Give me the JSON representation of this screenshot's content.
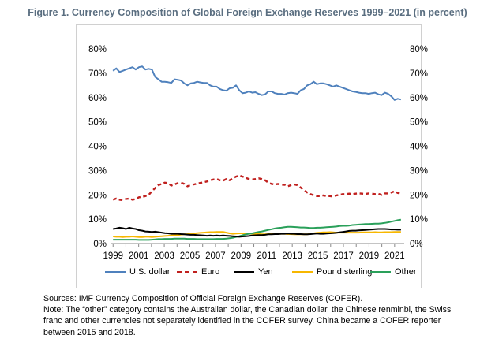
{
  "figure": {
    "title": "Figure 1. Currency Composition of Global Foreign Exchange Reserves 1999–2021 (in percent)"
  },
  "chart_data": {
    "type": "line",
    "title": "",
    "xlabel": "",
    "ylabel": "",
    "x_range": [
      1999,
      2021.5
    ],
    "xlim": [
      1998.8,
      2021.75
    ],
    "ylim": [
      0,
      80
    ],
    "y_ticks": [
      "0%",
      "10%",
      "20%",
      "30%",
      "40%",
      "50%",
      "60%",
      "70%",
      "80%"
    ],
    "y_ticks_right": [
      "0%",
      "10%",
      "20%",
      "30%",
      "40%",
      "50%",
      "60%",
      "70%",
      "80%"
    ],
    "x_ticks": [
      "1999",
      "2001",
      "2003",
      "2005",
      "2007",
      "2009",
      "2011",
      "2013",
      "2015",
      "2017",
      "2019",
      "2021"
    ],
    "grid": false,
    "legend_position": "bottom",
    "series": [
      {
        "name": "U.S. dollar",
        "color": "#4f81bd",
        "style": "solid",
        "values": [
          71.0,
          72.0,
          70.5,
          71.0,
          71.5,
          72.0,
          72.5,
          71.5,
          72.5,
          72.8,
          71.5,
          71.8,
          71.5,
          68.5,
          67.5,
          66.5,
          66.5,
          66.3,
          66.0,
          67.5,
          67.3,
          67.0,
          65.8,
          65.0,
          65.8,
          66.0,
          66.5,
          66.2,
          66.0,
          66.0,
          65.0,
          64.5,
          64.5,
          63.5,
          63.0,
          62.8,
          63.8,
          64.0,
          65.0,
          63.0,
          61.8,
          62.0,
          62.5,
          62.0,
          62.2,
          61.5,
          61.0,
          61.3,
          62.5,
          62.5,
          61.8,
          61.5,
          61.5,
          61.2,
          61.8,
          62.0,
          61.8,
          61.5,
          63.0,
          63.5,
          65.0,
          65.5,
          66.5,
          65.5,
          65.8,
          65.8,
          65.5,
          65.0,
          64.5,
          65.0,
          64.5,
          64.0,
          63.5,
          63.0,
          62.5,
          62.3,
          62.0,
          61.8,
          61.8,
          61.5,
          61.8,
          62.0,
          61.3,
          61.0,
          62.0,
          61.5,
          60.5,
          59.0,
          59.5,
          59.2
        ]
      },
      {
        "name": "Euro",
        "color": "#c0201e",
        "style": "dashed",
        "values": [
          18.0,
          18.5,
          18.0,
          17.8,
          18.3,
          18.5,
          18.0,
          18.3,
          19.0,
          19.2,
          19.5,
          20.0,
          21.5,
          22.8,
          24.0,
          24.5,
          25.0,
          24.8,
          23.8,
          24.3,
          24.8,
          25.0,
          24.5,
          23.5,
          24.0,
          24.3,
          24.6,
          24.9,
          25.2,
          25.5,
          26.0,
          26.3,
          26.5,
          26.0,
          25.8,
          26.5,
          26.0,
          26.8,
          27.5,
          28.0,
          27.5,
          27.0,
          26.5,
          26.3,
          26.5,
          26.8,
          26.5,
          26.0,
          25.0,
          24.5,
          24.3,
          24.5,
          24.0,
          24.2,
          23.5,
          24.0,
          24.3,
          24.0,
          23.0,
          22.0,
          21.0,
          20.3,
          19.8,
          19.5,
          19.5,
          19.8,
          19.5,
          19.5,
          19.3,
          19.8,
          20.0,
          20.3,
          20.3,
          20.5,
          20.3,
          20.5,
          20.6,
          20.5,
          20.4,
          20.6,
          20.5,
          20.3,
          20.4,
          20.0,
          20.6,
          20.6,
          21.0,
          21.5,
          20.8,
          20.5
        ]
      },
      {
        "name": "Yen",
        "color": "#000000",
        "style": "solid",
        "values": [
          6.0,
          6.2,
          6.5,
          6.3,
          6.0,
          6.5,
          6.2,
          6.0,
          5.5,
          5.3,
          5.0,
          4.9,
          4.8,
          4.9,
          4.7,
          4.5,
          4.3,
          4.2,
          4.0,
          4.0,
          4.0,
          3.9,
          3.8,
          3.7,
          3.6,
          3.6,
          3.5,
          3.4,
          3.3,
          3.2,
          3.3,
          3.2,
          3.3,
          3.2,
          3.3,
          3.2,
          3.1,
          3.0,
          2.9,
          2.8,
          2.9,
          3.0,
          3.1,
          3.3,
          3.4,
          3.5,
          3.5,
          3.6,
          3.8,
          3.8,
          3.9,
          3.9,
          4.0,
          4.0,
          4.1,
          4.0,
          4.0,
          3.9,
          3.9,
          3.8,
          3.8,
          3.9,
          4.0,
          4.1,
          4.0,
          4.0,
          4.1,
          4.2,
          4.3,
          4.4,
          4.6,
          4.8,
          5.0,
          5.2,
          5.3,
          5.3,
          5.4,
          5.5,
          5.6,
          5.7,
          5.8,
          5.9,
          6.0,
          6.0,
          6.0,
          5.9,
          5.8,
          5.8,
          5.7,
          5.7
        ]
      },
      {
        "name": "Pound sterling",
        "color": "#f7b700",
        "style": "solid",
        "values": [
          2.9,
          2.8,
          2.8,
          2.7,
          2.8,
          2.8,
          2.9,
          2.8,
          2.7,
          2.7,
          2.8,
          2.8,
          2.7,
          2.8,
          2.9,
          3.0,
          3.1,
          3.2,
          3.3,
          3.4,
          3.5,
          3.7,
          3.8,
          3.9,
          4.0,
          4.1,
          4.3,
          4.4,
          4.5,
          4.6,
          4.7,
          4.7,
          4.8,
          4.8,
          4.8,
          4.5,
          4.2,
          4.0,
          4.1,
          4.2,
          4.2,
          4.1,
          4.0,
          4.0,
          3.9,
          3.9,
          3.8,
          3.8,
          3.9,
          3.9,
          3.9,
          4.0,
          4.0,
          4.0,
          3.9,
          3.9,
          3.8,
          3.8,
          3.8,
          3.8,
          3.8,
          4.0,
          4.2,
          4.4,
          4.5,
          4.6,
          4.6,
          4.7,
          4.6,
          4.5,
          4.5,
          4.5,
          4.5,
          4.5,
          4.5,
          4.5,
          4.5,
          4.6,
          4.6,
          4.6,
          4.6,
          4.7,
          4.6,
          4.6,
          4.7,
          4.7,
          4.7,
          4.8,
          4.8,
          4.8
        ]
      },
      {
        "name": "Other",
        "color": "#2aa05a",
        "style": "solid",
        "values": [
          1.6,
          1.6,
          1.6,
          1.6,
          1.6,
          1.6,
          1.6,
          1.6,
          1.5,
          1.5,
          1.5,
          1.5,
          1.6,
          1.7,
          1.8,
          1.8,
          1.9,
          1.9,
          1.9,
          2.0,
          2.0,
          2.0,
          2.0,
          1.9,
          1.9,
          1.9,
          1.8,
          1.8,
          1.8,
          1.8,
          1.8,
          1.8,
          1.9,
          1.9,
          1.9,
          2.0,
          2.2,
          2.4,
          2.7,
          3.0,
          3.4,
          3.8,
          4.0,
          4.2,
          4.5,
          4.8,
          5.0,
          5.3,
          5.6,
          5.9,
          6.2,
          6.4,
          6.5,
          6.7,
          6.9,
          6.9,
          6.8,
          6.7,
          6.6,
          6.6,
          6.5,
          6.4,
          6.4,
          6.5,
          6.5,
          6.6,
          6.7,
          6.8,
          6.9,
          7.0,
          7.2,
          7.3,
          7.3,
          7.4,
          7.6,
          7.7,
          7.8,
          7.9,
          8.0,
          8.0,
          8.1,
          8.2,
          8.2,
          8.3,
          8.5,
          8.7,
          9.0,
          9.3,
          9.6,
          9.8
        ]
      }
    ]
  },
  "footnote": {
    "lines": [
      "Sources: IMF Currency Composition of Official Foreign Exchange Reserves (COFER).",
      "Note: The “other” category contains the Australian dollar, the Canadian dollar, the Chinese renminbi, the Swiss",
      "franc and other currencies not separately identified in the COFER survey. China became a COFER reporter",
      "between 2015 and 2018."
    ]
  }
}
